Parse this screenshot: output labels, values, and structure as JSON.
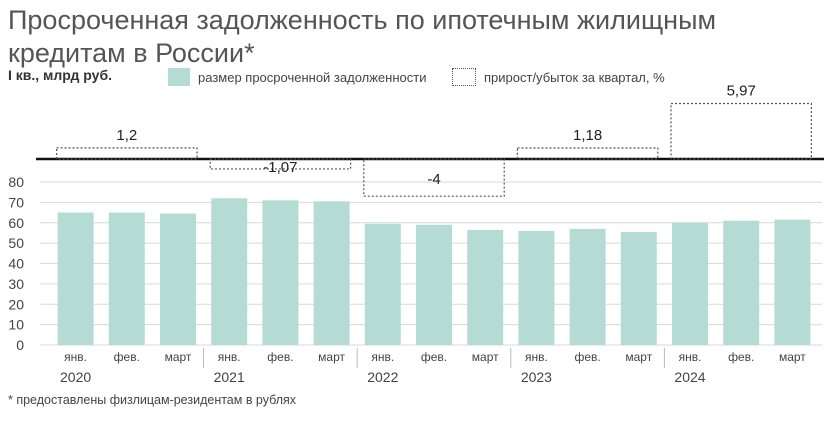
{
  "title": "Просроченная задолженность по ипотечным жилищным кредитам в России*",
  "subtitle": "I кв., млрд руб.",
  "footnote": "* предоставлены физлицам-резидентам в рублях",
  "legend": {
    "bars": "размер просроченной задолженности",
    "growth": "прирост/убыток за квартал, %"
  },
  "colors": {
    "bar": "#b5dcd4",
    "baseline": "#111111",
    "dotted": "#555555",
    "text": "#444444"
  },
  "chart_data": {
    "type": "bar",
    "ylim": [
      0,
      80
    ],
    "yticks": [
      "0",
      "10",
      "20",
      "30",
      "40",
      "50",
      "60",
      "70",
      "80"
    ],
    "categories": [
      "янв.",
      "фев.",
      "март",
      "янв.",
      "фев.",
      "март",
      "янв.",
      "фев.",
      "март",
      "янв.",
      "фев.",
      "март",
      "янв.",
      "фев.",
      "март"
    ],
    "years": [
      "2020",
      "2021",
      "2022",
      "2023",
      "2024"
    ],
    "values": [
      65,
      65,
      64.5,
      72,
      71,
      70.5,
      59.5,
      59,
      56.5,
      56,
      57,
      55.5,
      60,
      61,
      61.5
    ],
    "quarterly_change": [
      {
        "year": "2020",
        "value": 1.2,
        "label": "1,2"
      },
      {
        "year": "2021",
        "value": -1.07,
        "label": "-1,07"
      },
      {
        "year": "2022",
        "value": -4,
        "label": "-4"
      },
      {
        "year": "2023",
        "value": 1.18,
        "label": "1,18"
      },
      {
        "year": "2024",
        "value": 5.97,
        "label": "5,97"
      }
    ]
  }
}
